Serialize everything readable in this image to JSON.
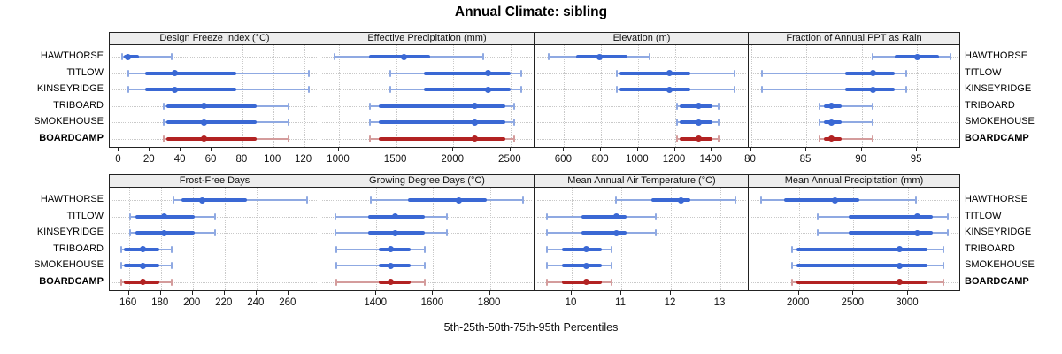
{
  "title": "Annual Climate: sibling",
  "caption": "5th-25th-50th-75th-95th Percentiles",
  "colors": {
    "series": "#3a68d4",
    "series_faint": "#8fa9e2",
    "highlight": "#b22222",
    "highlight_faint": "#d49c9c",
    "strip_bg": "#ededed",
    "panel_border": "#222222",
    "grid": "#c9c9c9"
  },
  "chart_data": {
    "type": "trellis-percentile-dotplot",
    "subtype": "5-25-50-75-95 percentile whisker plot, 2x4 panel lattice",
    "percentiles": [
      5,
      25,
      50,
      75,
      95
    ],
    "groups": [
      "HAWTHORSE",
      "TITLOW",
      "KINSEYRIDGE",
      "TRIBOARD",
      "SMOKEHOUSE",
      "BOARDCAMP"
    ],
    "highlight_group": "BOARDCAMP",
    "grid": "dotted horizontal row guides and vertical gridlines at ticks",
    "legend_position": "none",
    "panels": [
      {
        "title": "Design Freeze Index (°C)",
        "xlim": [
          -6,
          130
        ],
        "ticks": [
          0,
          20,
          40,
          60,
          80,
          100,
          120
        ],
        "values": {
          "HAWTHORSE": [
            2,
            3,
            6,
            13,
            34
          ],
          "TITLOW": [
            6,
            17,
            36,
            76,
            123
          ],
          "KINSEYRIDGE": [
            6,
            17,
            36,
            76,
            123
          ],
          "TRIBOARD": [
            29,
            31,
            55,
            89,
            110
          ],
          "SMOKEHOUSE": [
            29,
            31,
            55,
            89,
            110
          ],
          "BOARDCAMP": [
            29,
            31,
            55,
            89,
            110
          ]
        }
      },
      {
        "title": "Effective Precipitation (mm)",
        "xlim": [
          830,
          2710
        ],
        "ticks": [
          1000,
          1500,
          2000,
          2500
        ],
        "values": {
          "HAWTHORSE": [
            960,
            1265,
            1570,
            1795,
            2260
          ],
          "TITLOW": [
            1450,
            1745,
            2300,
            2500,
            2595
          ],
          "KINSEYRIDGE": [
            1450,
            1745,
            2300,
            2500,
            2595
          ],
          "TRIBOARD": [
            1270,
            1350,
            2185,
            2455,
            2530
          ],
          "SMOKEHOUSE": [
            1270,
            1350,
            2185,
            2455,
            2530
          ],
          "BOARDCAMP": [
            1270,
            1350,
            2185,
            2455,
            2530
          ]
        }
      },
      {
        "title": "Elevation (m)",
        "xlim": [
          440,
          1600
        ],
        "ticks": [
          600,
          800,
          1000,
          1200,
          1400
        ],
        "values": {
          "HAWTHORSE": [
            515,
            665,
            790,
            945,
            1065
          ],
          "TITLOW": [
            885,
            900,
            1170,
            1285,
            1525
          ],
          "KINSEYRIDGE": [
            885,
            900,
            1170,
            1285,
            1525
          ],
          "TRIBOARD": [
            1210,
            1225,
            1330,
            1405,
            1435
          ],
          "SMOKEHOUSE": [
            1210,
            1225,
            1330,
            1405,
            1435
          ],
          "BOARDCAMP": [
            1210,
            1225,
            1330,
            1405,
            1435
          ]
        }
      },
      {
        "title": "Fraction of Annual PPT as Rain",
        "xlim": [
          79.8,
          98.9
        ],
        "ticks": [
          80,
          85,
          90,
          95
        ],
        "values": {
          "HAWTHORSE": [
            91,
            93,
            95,
            97,
            98
          ],
          "TITLOW": [
            81,
            88.5,
            91,
            93,
            94
          ],
          "KINSEYRIDGE": [
            81,
            88.5,
            91,
            93,
            94
          ],
          "TRIBOARD": [
            86.2,
            86.6,
            87.3,
            88.2,
            91
          ],
          "SMOKEHOUSE": [
            86.2,
            86.6,
            87.3,
            88.2,
            91
          ],
          "BOARDCAMP": [
            86.2,
            86.6,
            87.3,
            88.2,
            91
          ]
        }
      },
      {
        "title": "Frost-Free Days",
        "xlim": [
          148,
          279.5
        ],
        "ticks": [
          160,
          180,
          200,
          220,
          240,
          260
        ],
        "values": {
          "HAWTHORSE": [
            188,
            193,
            206,
            234,
            272
          ],
          "TITLOW": [
            161,
            164,
            182,
            201,
            214
          ],
          "KINSEYRIDGE": [
            161,
            164,
            182,
            201,
            214
          ],
          "TRIBOARD": [
            155,
            157,
            169,
            179,
            187
          ],
          "SMOKEHOUSE": [
            155,
            157,
            169,
            179,
            187
          ],
          "BOARDCAMP": [
            155,
            157,
            169,
            179,
            187
          ]
        }
      },
      {
        "title": "Growing Degree Days (°C)",
        "xlim": [
          1200,
          1957
        ],
        "ticks": [
          1400,
          1600,
          1800
        ],
        "values": {
          "HAWTHORSE": [
            1380,
            1510,
            1690,
            1790,
            1915
          ],
          "TITLOW": [
            1255,
            1370,
            1465,
            1570,
            1650
          ],
          "KINSEYRIDGE": [
            1255,
            1370,
            1465,
            1570,
            1650
          ],
          "TRIBOARD": [
            1260,
            1410,
            1450,
            1520,
            1570
          ],
          "SMOKEHOUSE": [
            1260,
            1410,
            1450,
            1520,
            1570
          ],
          "BOARDCAMP": [
            1260,
            1410,
            1450,
            1520,
            1570
          ]
        }
      },
      {
        "title": "Mean Annual Air Temperature (°C)",
        "xlim": [
          9.25,
          13.57
        ],
        "ticks": [
          10,
          11,
          12,
          13
        ],
        "values": {
          "HAWTHORSE": [
            10.9,
            11.6,
            12.2,
            12.4,
            13.3
          ],
          "TITLOW": [
            9.5,
            10.2,
            10.9,
            11.1,
            11.7
          ],
          "KINSEYRIDGE": [
            9.5,
            10.2,
            10.9,
            11.1,
            11.7
          ],
          "TRIBOARD": [
            9.5,
            9.8,
            10.3,
            10.6,
            10.8
          ],
          "SMOKEHOUSE": [
            9.5,
            9.8,
            10.3,
            10.6,
            10.8
          ],
          "BOARDCAMP": [
            9.5,
            9.8,
            10.3,
            10.6,
            10.8
          ]
        }
      },
      {
        "title": "Mean Annual Precipitation (mm)",
        "xlim": [
          1540,
          3480
        ],
        "ticks": [
          2000,
          2500,
          3000
        ],
        "values": {
          "HAWTHORSE": [
            1655,
            1865,
            2330,
            2555,
            3075
          ],
          "TITLOW": [
            2170,
            2460,
            3090,
            3230,
            3365
          ],
          "KINSEYRIDGE": [
            2170,
            2460,
            3090,
            3230,
            3365
          ],
          "TRIBOARD": [
            1940,
            1975,
            2925,
            3180,
            3325
          ],
          "SMOKEHOUSE": [
            1940,
            1975,
            2925,
            3180,
            3325
          ],
          "BOARDCAMP": [
            1940,
            1975,
            2925,
            3180,
            3325
          ]
        }
      }
    ]
  }
}
